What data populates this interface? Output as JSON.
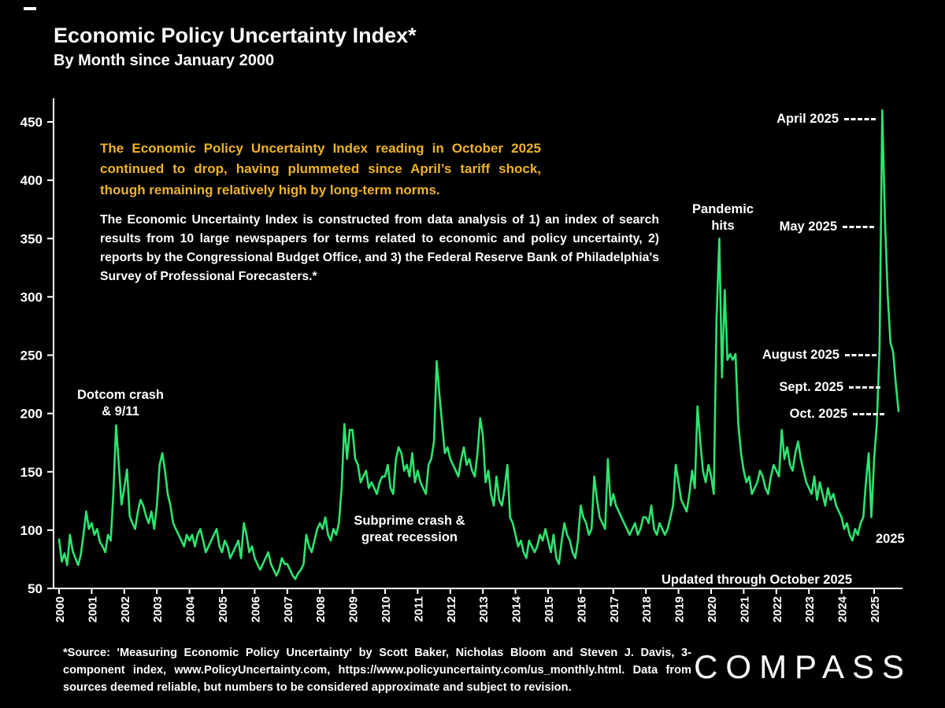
{
  "header": {
    "title": "Economic Policy Uncertainty Index*",
    "subtitle": "By Month since January 2000"
  },
  "callouts": {
    "highlight": "The Economic Policy Uncertainty Index reading in October 2025 continued to drop, having plummeted since April’s tariff shock, though remaining relatively high by long-term norms.",
    "description": "The Economic Uncertainty Index is constructed from data analysis of 1) an index of search results from 10 large newspapers for terms related to economic and policy uncertainty, 2) reports by the Congressional Budget Office, and 3) the Federal Reserve Bank of Philadelphia's Survey of Professional Forecasters.*"
  },
  "chart_data": {
    "type": "line",
    "title": "Economic Policy Uncertainty Index by Month since January 2000",
    "x_start": "2000-01",
    "x_end": "2025-10",
    "ylim": [
      50,
      470
    ],
    "y_ticks": [
      50,
      100,
      150,
      200,
      250,
      300,
      350,
      400,
      450
    ],
    "years": [
      2000,
      2001,
      2002,
      2003,
      2004,
      2005,
      2006,
      2007,
      2008,
      2009,
      2010,
      2011,
      2012,
      2013,
      2014,
      2015,
      2016,
      2017,
      2018,
      2019,
      2020,
      2021,
      2022,
      2023,
      2024,
      2025
    ],
    "grid": false,
    "legend": "none",
    "series": [
      {
        "name": "Economic Policy Uncertainty Index (3-component, monthly)",
        "color": "#2de471",
        "monthly_values": [
          92,
          73,
          80,
          70,
          96,
          82,
          76,
          70,
          79,
          96,
          116,
          101,
          106,
          96,
          101,
          90,
          86,
          81,
          96,
          91,
          132,
          190,
          156,
          122,
          136,
          152,
          112,
          106,
          101,
          116,
          126,
          121,
          112,
          106,
          116,
          101,
          121,
          156,
          166,
          151,
          131,
          121,
          106,
          101,
          96,
          91,
          86,
          96,
          91,
          96,
          86,
          96,
          101,
          91,
          81,
          86,
          91,
          96,
          101,
          86,
          81,
          91,
          86,
          76,
          81,
          86,
          91,
          76,
          106,
          96,
          81,
          86,
          76,
          71,
          66,
          71,
          76,
          81,
          71,
          66,
          61,
          66,
          76,
          71,
          71,
          66,
          61,
          58,
          63,
          66,
          71,
          96,
          86,
          81,
          91,
          101,
          106,
          101,
          111,
          96,
          91,
          101,
          96,
          106,
          136,
          191,
          161,
          186,
          186,
          161,
          156,
          141,
          146,
          151,
          136,
          141,
          136,
          131,
          141,
          146,
          146,
          156,
          136,
          131,
          161,
          171,
          166,
          151,
          156,
          146,
          166,
          141,
          151,
          141,
          136,
          131,
          156,
          161,
          176,
          245,
          216,
          191,
          166,
          171,
          161,
          156,
          151,
          146,
          161,
          171,
          156,
          161,
          151,
          146,
          166,
          196,
          181,
          141,
          151,
          131,
          121,
          146,
          126,
          121,
          136,
          156,
          111,
          106,
          96,
          86,
          91,
          81,
          76,
          91,
          86,
          81,
          86,
          96,
          91,
          101,
          91,
          81,
          96,
          76,
          71,
          91,
          106,
          96,
          91,
          81,
          76,
          91,
          121,
          111,
          106,
          96,
          101,
          146,
          126,
          111,
          106,
          101,
          161,
          121,
          131,
          121,
          116,
          111,
          106,
          101,
          96,
          101,
          106,
          96,
          101,
          111,
          111,
          106,
          121,
          101,
          96,
          106,
          101,
          96,
          101,
          111,
          121,
          156,
          141,
          126,
          121,
          116,
          131,
          151,
          136,
          206,
          176,
          151,
          141,
          156,
          146,
          131,
          281,
          350,
          231,
          306,
          246,
          251,
          246,
          251,
          191,
          166,
          151,
          141,
          146,
          131,
          136,
          141,
          151,
          146,
          136,
          131,
          146,
          156,
          151,
          146,
          186,
          161,
          171,
          156,
          151,
          166,
          176,
          161,
          151,
          141,
          136,
          131,
          146,
          126,
          141,
          131,
          121,
          136,
          126,
          131,
          121,
          116,
          111,
          101,
          106,
          96,
          91,
          101,
          96,
          106,
          111,
          141,
          166,
          111,
          161,
          191,
          256,
          460,
          365,
          301,
          261,
          253,
          225,
          202
        ]
      }
    ],
    "annotations": {
      "dotcom": {
        "text": "Dotcom crash\n& 9/11"
      },
      "subprime": {
        "text": "Subprime crash &\ngreat recession"
      },
      "pandemic": {
        "text": "Pandemic\nhits"
      },
      "april_2025": {
        "label": "April 2025",
        "value": 460
      },
      "may_2025": {
        "label": "May 2025",
        "value": 365
      },
      "august_2025": {
        "label": "August 2025",
        "value": 253
      },
      "sept_2025": {
        "label": "Sept. 2025",
        "value": 225
      },
      "oct_2025": {
        "label": "Oct. 2025",
        "value": 202
      },
      "end_year_label": "2025",
      "updated": "Updated through October 2025"
    }
  },
  "footer": {
    "source": "*Source: 'Measuring Economic Policy Uncertainty' by Scott Baker, Nicholas Bloom and Steven J. Davis, 3-component index, www.PolicyUncertainty.com, https://www.policyuncertainty.com/us_monthly.html. Data from sources deemed reliable, but numbers to be considered approximate and subject to revision."
  },
  "brand": {
    "logo": "COMPASS"
  }
}
